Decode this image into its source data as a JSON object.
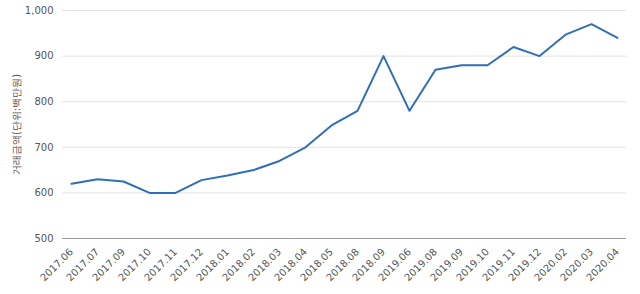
{
  "chart_data": {
    "type": "line",
    "y_label": "거래금액(단위:백만원)",
    "categories": [
      "2017.06",
      "2017.07",
      "2017.09",
      "2017.10",
      "2017.11",
      "2017.12",
      "2018.01",
      "2018.02",
      "2018.03",
      "2018.04",
      "2018.05",
      "2018.08",
      "2018.09",
      "2019.06",
      "2019.08",
      "2019.09",
      "2019.10",
      "2019.11",
      "2019.12",
      "2020.02",
      "2020.03",
      "2020.04"
    ],
    "values": [
      620,
      630,
      625,
      600,
      600,
      628,
      638,
      650,
      670,
      700,
      748,
      780,
      900,
      780,
      870,
      880,
      880,
      920,
      900,
      947,
      970,
      940
    ],
    "color": "#2f6fb8",
    "ylim": [
      500,
      1000
    ],
    "yticks": [
      500,
      600,
      700,
      800,
      900,
      {
        "value": 1000,
        "label": "1,000"
      }
    ],
    "grid": true
  }
}
